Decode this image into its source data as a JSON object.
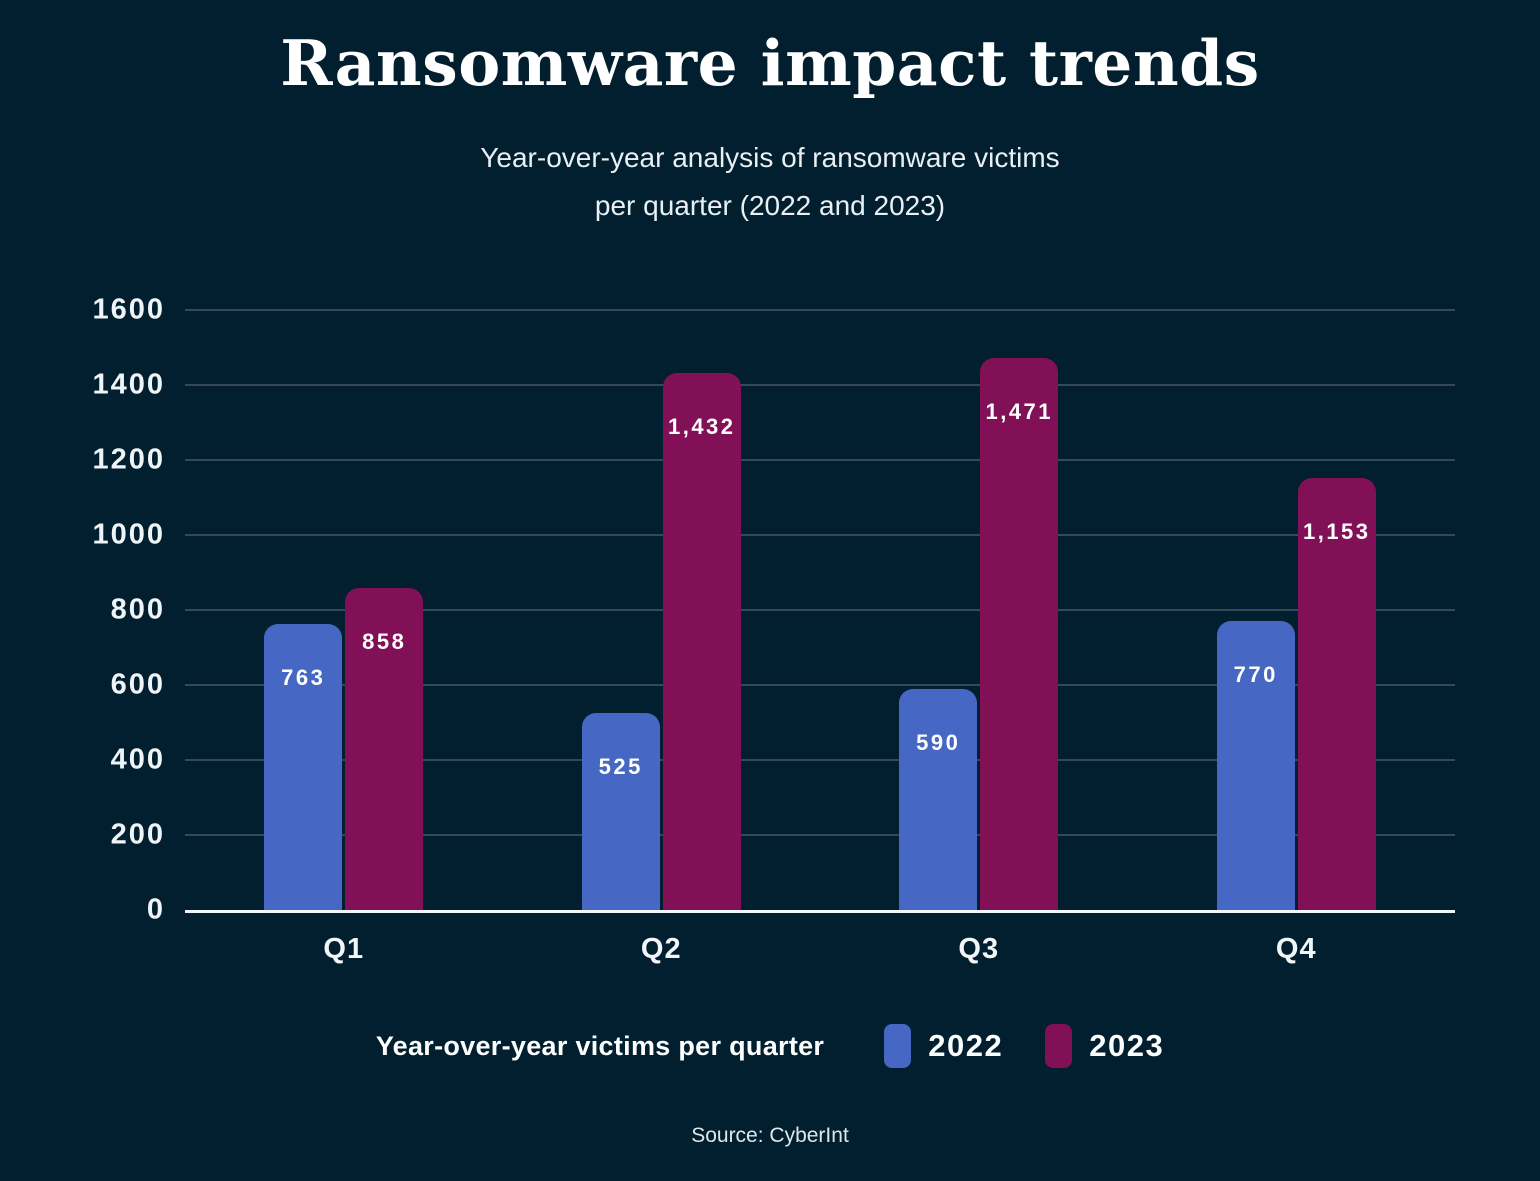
{
  "header": {
    "title": "Ransomware impact trends",
    "subtitle_line1": "Year-over-year analysis of ransomware victims",
    "subtitle_line2": "per quarter (2022 and 2023)"
  },
  "chart_data": {
    "type": "bar",
    "title": "Ransomware impact trends",
    "subtitle": "Year-over-year analysis of ransomware victims per quarter (2022 and 2023)",
    "categories": [
      "Q1",
      "Q2",
      "Q3",
      "Q4"
    ],
    "series": [
      {
        "name": "2022",
        "color": "#4667C4",
        "values": [
          763,
          525,
          590,
          770
        ],
        "labels": [
          "763",
          "525",
          "590",
          "770"
        ]
      },
      {
        "name": "2023",
        "color": "#821057",
        "values": [
          858,
          1432,
          1471,
          1153
        ],
        "labels": [
          "858",
          "1,432",
          "1,471",
          "1,153"
        ]
      }
    ],
    "xlabel": "",
    "ylabel": "",
    "ylim": [
      0,
      1600
    ],
    "yticks": [
      0,
      200,
      400,
      600,
      800,
      1000,
      1200,
      1400,
      1600
    ],
    "grid": "horizontal",
    "legend_position": "bottom"
  },
  "legend": {
    "title": "Year-over-year victims per quarter",
    "series": [
      {
        "label": "2022",
        "color": "#4667C4"
      },
      {
        "label": "2023",
        "color": "#821057"
      }
    ]
  },
  "footer": {
    "source": "Source: CyberInt"
  },
  "colors": {
    "background": "#021F2F",
    "gridline": "#35495A",
    "axis_line": "#F2F6F8",
    "text": "#FFFFFF",
    "bar_2022": "#4667C4",
    "bar_2023": "#821057"
  }
}
